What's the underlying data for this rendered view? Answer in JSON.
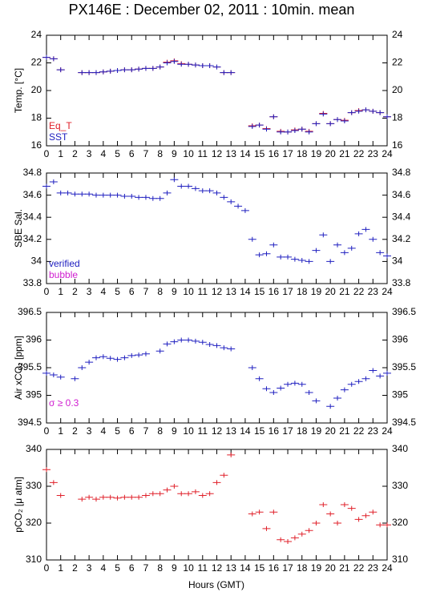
{
  "chart_data": [
    {
      "type": "scatter",
      "title": "PX146E : December 02, 2011 : 10min. mean",
      "ylabel": "Temp. [°C]",
      "xlim": [
        0,
        24
      ],
      "xticks": [
        0,
        1,
        2,
        3,
        4,
        5,
        6,
        7,
        8,
        9,
        10,
        11,
        12,
        13,
        14,
        15,
        16,
        17,
        18,
        19,
        20,
        21,
        22,
        23,
        24
      ],
      "ylim": [
        16,
        24
      ],
      "yticks": [
        16,
        18,
        20,
        22,
        24
      ],
      "x": [
        0,
        0.5,
        1,
        1.5,
        2,
        2.5,
        3,
        3.5,
        4,
        4.5,
        5,
        5.5,
        6,
        6.5,
        7,
        7.5,
        8,
        8.5,
        9,
        9.5,
        10,
        10.5,
        11,
        11.5,
        12,
        12.5,
        13,
        13.5,
        14,
        14.5,
        15,
        15.5,
        16,
        16.5,
        17,
        17.5,
        18,
        18.5,
        19,
        19.5,
        20,
        20.5,
        21,
        21.5,
        22,
        22.5,
        23,
        23.5,
        24
      ],
      "series": [
        {
          "name": "Eq_T",
          "color": "#e0202a",
          "values": [
            22.4,
            22.3,
            21.5,
            null,
            null,
            21.3,
            21.3,
            21.3,
            21.35,
            21.4,
            21.45,
            21.5,
            21.5,
            21.55,
            21.6,
            21.6,
            21.7,
            22.05,
            22.15,
            21.95,
            21.9,
            21.85,
            21.8,
            21.8,
            21.7,
            21.3,
            21.3,
            null,
            null,
            17.45,
            17.5,
            17.25,
            18.1,
            17.05,
            17.0,
            17.15,
            17.2,
            17.05,
            17.6,
            18.35,
            17.6,
            17.9,
            17.85,
            18.4,
            18.55,
            18.6,
            18.5,
            18.4,
            18.1
          ]
        },
        {
          "name": "SST",
          "color": "#2020c0",
          "values": [
            22.4,
            22.3,
            21.5,
            null,
            null,
            21.3,
            21.3,
            21.3,
            21.35,
            21.4,
            21.45,
            21.5,
            21.5,
            21.55,
            21.6,
            21.6,
            21.7,
            22.0,
            22.1,
            21.9,
            21.9,
            21.85,
            21.8,
            21.8,
            21.7,
            21.3,
            21.3,
            null,
            null,
            17.4,
            17.5,
            17.2,
            18.1,
            17.0,
            17.0,
            17.1,
            17.2,
            17.0,
            17.6,
            18.3,
            17.6,
            17.9,
            17.8,
            18.4,
            18.5,
            18.6,
            18.5,
            18.4,
            18.1
          ]
        }
      ]
    },
    {
      "type": "scatter",
      "ylabel": "SBE Sal.",
      "xlim": [
        0,
        24
      ],
      "xticks": [
        0,
        1,
        2,
        3,
        4,
        5,
        6,
        7,
        8,
        9,
        10,
        11,
        12,
        13,
        14,
        15,
        16,
        17,
        18,
        19,
        20,
        21,
        22,
        23,
        24
      ],
      "ylim": [
        33.8,
        34.8
      ],
      "yticks": [
        33.8,
        34,
        34.2,
        34.4,
        34.6,
        34.8
      ],
      "x": [
        0,
        0.5,
        1,
        1.5,
        2,
        2.5,
        3,
        3.5,
        4,
        4.5,
        5,
        5.5,
        6,
        6.5,
        7,
        7.5,
        8,
        8.5,
        9,
        9.5,
        10,
        10.5,
        11,
        11.5,
        12,
        12.5,
        13,
        13.5,
        14,
        14.5,
        15,
        15.5,
        16,
        16.5,
        17,
        17.5,
        18,
        18.5,
        19,
        19.5,
        20,
        20.5,
        21,
        21.5,
        22,
        22.5,
        23,
        23.5,
        24
      ],
      "series": [
        {
          "name": "verified",
          "color": "#2020c0",
          "values": [
            34.68,
            34.72,
            34.62,
            34.62,
            34.61,
            34.61,
            34.61,
            34.6,
            34.6,
            34.6,
            34.6,
            34.59,
            34.59,
            34.58,
            34.58,
            34.57,
            34.57,
            34.62,
            34.74,
            34.68,
            34.68,
            34.66,
            34.64,
            34.64,
            34.62,
            34.58,
            34.54,
            34.5,
            34.46,
            34.2,
            34.06,
            34.07,
            34.15,
            34.04,
            34.04,
            34.02,
            34.01,
            34.0,
            34.1,
            34.24,
            34.0,
            34.15,
            34.08,
            34.12,
            34.25,
            34.29,
            34.2,
            34.08,
            34.05
          ]
        },
        {
          "name": "bubble",
          "color": "#d020d0",
          "values": [
            null,
            null,
            null,
            null,
            null,
            null,
            null,
            null,
            null,
            null,
            null,
            null,
            null,
            null,
            null,
            null,
            null,
            null,
            null,
            null,
            null,
            null,
            null,
            null,
            null,
            null,
            null,
            null,
            null,
            null,
            null,
            null,
            null,
            null,
            null,
            null,
            null,
            null,
            null,
            null,
            null,
            null,
            null,
            null,
            null,
            null,
            null,
            null,
            null
          ]
        }
      ]
    },
    {
      "type": "scatter",
      "ylabel": "Air xCO₂ [ppm]",
      "annotation": "σ ≥ 0.3",
      "xlim": [
        0,
        24
      ],
      "xticks": [
        0,
        1,
        2,
        3,
        4,
        5,
        6,
        7,
        8,
        9,
        10,
        11,
        12,
        13,
        14,
        15,
        16,
        17,
        18,
        19,
        20,
        21,
        22,
        23,
        24
      ],
      "ylim": [
        394.5,
        396.5
      ],
      "yticks": [
        394.5,
        395,
        395.5,
        396,
        396.5
      ],
      "x": [
        0,
        0.5,
        1,
        1.5,
        2,
        2.5,
        3,
        3.5,
        4,
        4.5,
        5,
        5.5,
        6,
        6.5,
        7,
        7.5,
        8,
        8.5,
        9,
        9.5,
        10,
        10.5,
        11,
        11.5,
        12,
        12.5,
        13,
        13.5,
        14,
        14.5,
        15,
        15.5,
        16,
        16.5,
        17,
        17.5,
        18,
        18.5,
        19,
        19.5,
        20,
        20.5,
        21,
        21.5,
        22,
        22.5,
        23,
        23.5,
        24
      ],
      "series": [
        {
          "name": "Air xCO2",
          "color": "#2020c0",
          "values": [
            395.4,
            395.37,
            395.33,
            null,
            395.3,
            395.5,
            395.6,
            395.68,
            395.7,
            395.67,
            395.65,
            395.68,
            395.72,
            395.73,
            395.75,
            null,
            395.8,
            395.93,
            395.97,
            396.0,
            396.0,
            395.98,
            395.96,
            395.92,
            395.9,
            395.86,
            395.84,
            null,
            null,
            395.5,
            395.3,
            395.12,
            395.05,
            395.13,
            395.2,
            395.22,
            395.2,
            395.05,
            394.9,
            null,
            394.8,
            394.95,
            395.1,
            395.2,
            395.25,
            395.3,
            395.45,
            395.35,
            395.4
          ]
        }
      ]
    },
    {
      "type": "scatter",
      "ylabel": "pCO₂ [μ atm]",
      "xlabel": "Hours (GMT)",
      "xlim": [
        0,
        24
      ],
      "xticks": [
        0,
        1,
        2,
        3,
        4,
        5,
        6,
        7,
        8,
        9,
        10,
        11,
        12,
        13,
        14,
        15,
        16,
        17,
        18,
        19,
        20,
        21,
        22,
        23,
        24
      ],
      "ylim": [
        310,
        340
      ],
      "yticks": [
        310,
        320,
        330,
        340
      ],
      "x": [
        0,
        0.5,
        1,
        1.5,
        2,
        2.5,
        3,
        3.5,
        4,
        4.5,
        5,
        5.5,
        6,
        6.5,
        7,
        7.5,
        8,
        8.5,
        9,
        9.5,
        10,
        10.5,
        11,
        11.5,
        12,
        12.5,
        13,
        13.5,
        14,
        14.5,
        15,
        15.5,
        16,
        16.5,
        17,
        17.5,
        18,
        18.5,
        19,
        19.5,
        20,
        20.5,
        21,
        21.5,
        22,
        22.5,
        23,
        23.5,
        24
      ],
      "series": [
        {
          "name": "pCO2",
          "color": "#e0202a",
          "values": [
            334.5,
            331,
            327.5,
            null,
            null,
            326.5,
            327,
            326.5,
            327,
            327,
            326.8,
            327,
            327,
            327,
            327.5,
            328,
            328,
            329,
            330,
            328,
            328,
            328.5,
            327.5,
            328,
            331,
            333,
            338.5,
            null,
            null,
            322.5,
            323,
            318.5,
            323,
            315.5,
            315,
            316,
            317,
            318,
            320,
            325,
            322.5,
            320,
            325,
            324,
            321,
            322,
            323,
            319.5,
            319.5
          ]
        }
      ]
    }
  ]
}
